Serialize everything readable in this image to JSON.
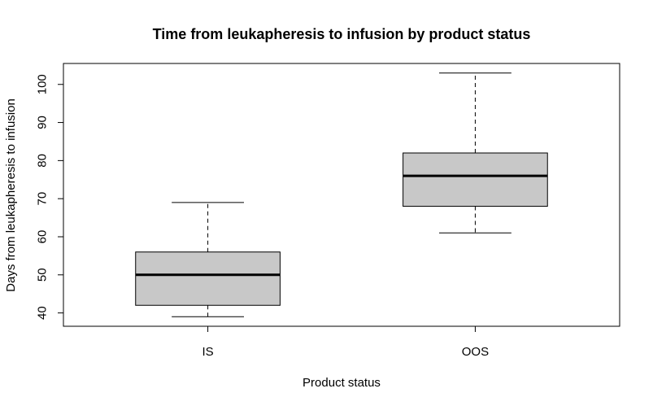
{
  "chart_data": {
    "type": "box",
    "title": "Time from leukapheresis to infusion by product status",
    "xlabel": "Product status",
    "ylabel": "Days from leukapheresis to infusion",
    "ylim": [
      36.5,
      105.5
    ],
    "yticks": [
      40,
      50,
      60,
      70,
      80,
      90,
      100
    ],
    "categories": [
      "IS",
      "OOS"
    ],
    "boxes": [
      {
        "category": "IS",
        "whisker_low": 39,
        "q1": 42,
        "median": 50,
        "q3": 56,
        "whisker_high": 69
      },
      {
        "category": "OOS",
        "whisker_low": 61,
        "q1": 68,
        "median": 76,
        "q3": 82,
        "whisker_high": 103
      }
    ],
    "box_fill": "#c8c8c8",
    "line_color": "#000000",
    "grid": false,
    "legend": "none"
  }
}
